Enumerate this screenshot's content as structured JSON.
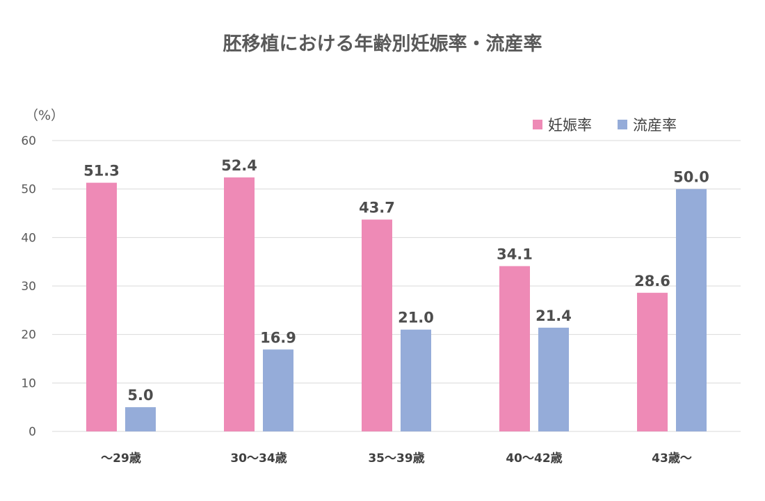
{
  "chart_data": {
    "type": "bar",
    "title": "胚移植における年齢別妊娠率・流産率",
    "ylabel": "（%）",
    "xlabel": "",
    "ylim": [
      0,
      60
    ],
    "yticks": [
      "0",
      "10",
      "20",
      "30",
      "40",
      "50",
      "60"
    ],
    "grid": true,
    "legend_position": "top-right",
    "categories": [
      "～29歳",
      "30～34歳",
      "35～39歳",
      "40～42歳",
      "43歳～"
    ],
    "series": [
      {
        "name": "妊娠率",
        "color": "#ee8ab6",
        "values": [
          51.3,
          52.4,
          43.7,
          34.1,
          28.6
        ]
      },
      {
        "name": "流産率",
        "color": "#95acd9",
        "values": [
          5.0,
          16.9,
          21.0,
          21.4,
          50.0
        ]
      }
    ]
  }
}
